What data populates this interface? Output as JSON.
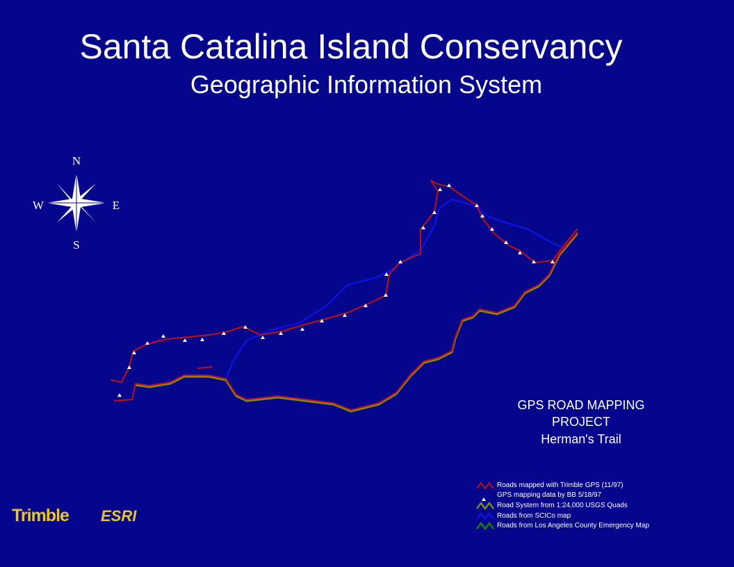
{
  "header": {
    "title": "Santa Catalina Island Conservancy",
    "subtitle": "Geographic Information System"
  },
  "compass": {
    "north": "N",
    "west": "W",
    "east": "E",
    "south": "S"
  },
  "project": {
    "lines": [
      "GPS ROAD MAPPING",
      "PROJECT",
      "Herman's Trail"
    ]
  },
  "legend": {
    "items": [
      "Roads mapped with Trimble GPS (11/97)",
      "GPS mapping data by BB 5/18/97",
      "Road System from 1:24,000 USGS Quads",
      "Roads from SCICo map",
      "Roads from Los Angeles County Emergency Map"
    ]
  },
  "logos": [
    "Trimble",
    "ESRI"
  ]
}
